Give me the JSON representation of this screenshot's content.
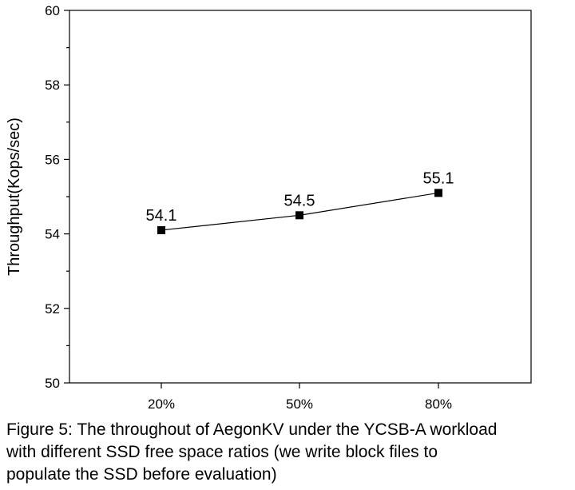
{
  "chart_data": {
    "type": "line",
    "categories": [
      "20%",
      "50%",
      "80%"
    ],
    "series": [
      {
        "values": [
          54.1,
          54.5,
          55.1
        ],
        "marker": "square",
        "color": "#000000"
      }
    ],
    "data_labels": [
      "54.1",
      "54.5",
      "55.1"
    ],
    "title": "",
    "xlabel": "",
    "ylabel": "Throughput(Kops/sec)",
    "ylim": [
      50,
      60
    ],
    "yticks": [
      50,
      52,
      54,
      56,
      58,
      60
    ],
    "ytick_labels": [
      "50",
      "52",
      "54",
      "56",
      "58",
      "60"
    ],
    "grid": false
  },
  "caption": {
    "lines": [
      "Figure 5: The throughout of AegonKV under the YCSB-A workload",
      "with different SSD free space ratios (we write block files to",
      "populate the SSD before evaluation)"
    ]
  }
}
